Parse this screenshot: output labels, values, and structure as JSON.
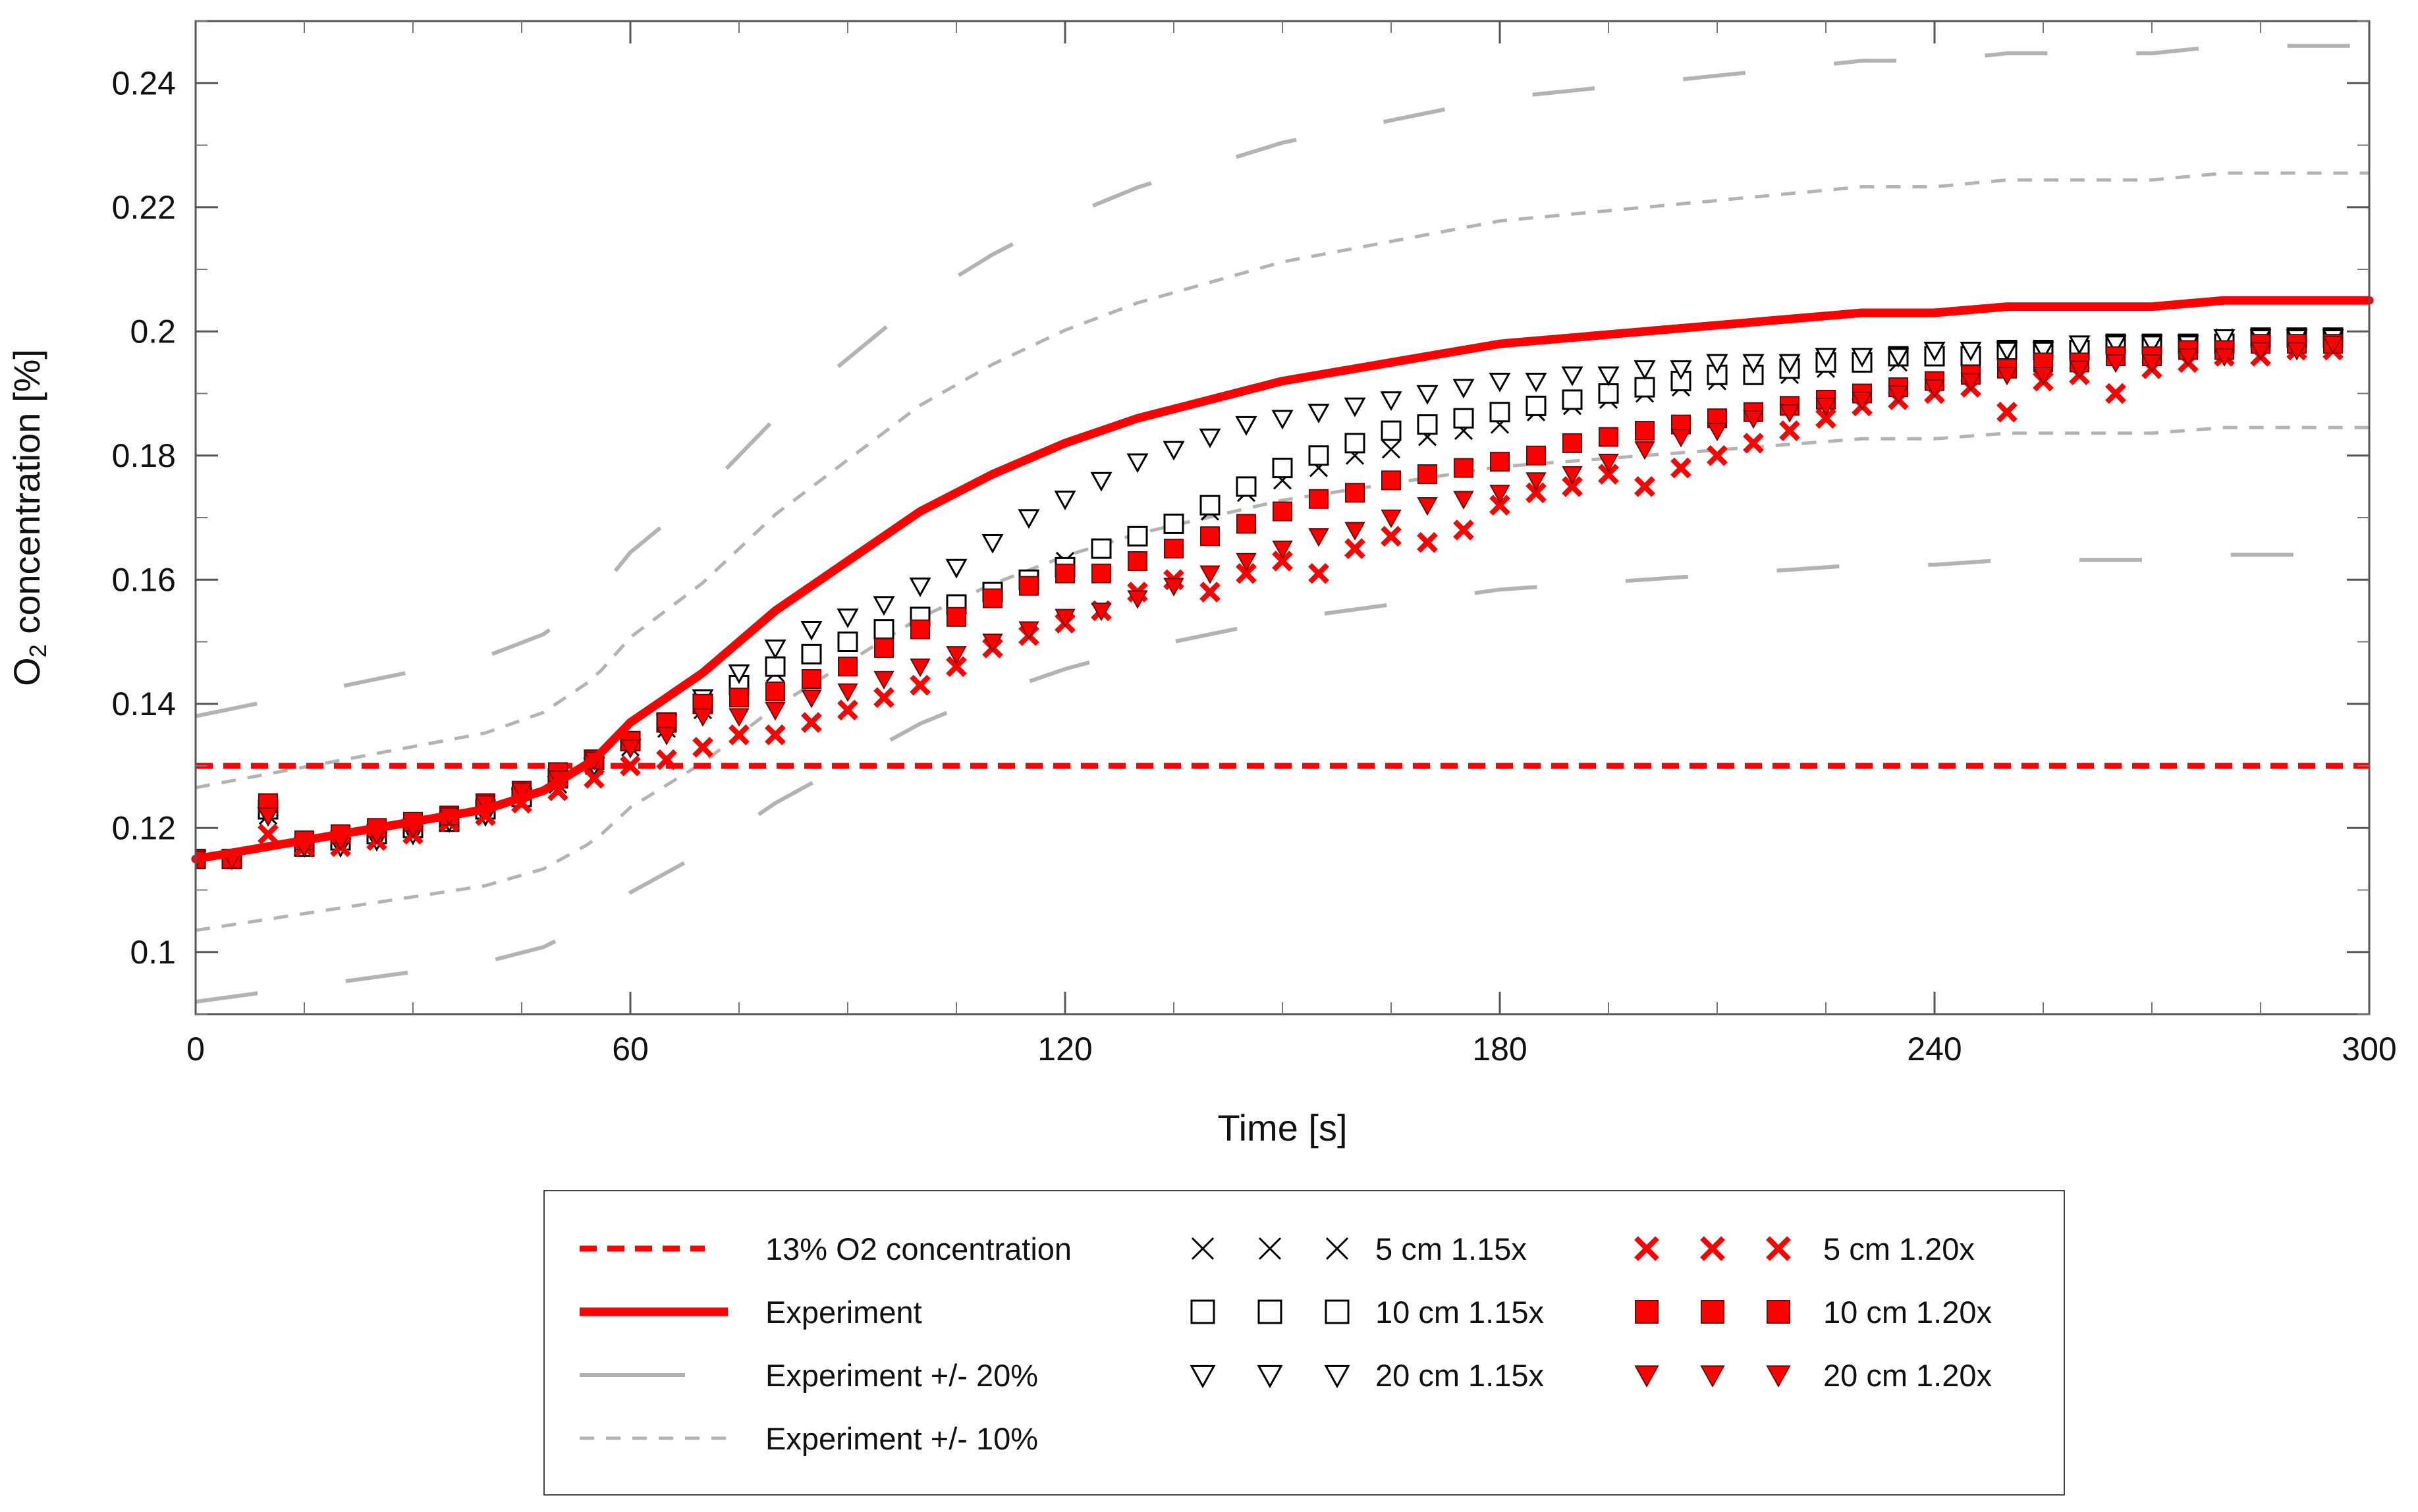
{
  "chart_data": {
    "type": "line",
    "xlabel": "Time [s]",
    "ylabel_main": "O",
    "ylabel_sub": "2",
    "ylabel_rest": " concentration [%]",
    "xlim": [
      0,
      300
    ],
    "ylim": [
      0.09,
      0.25
    ],
    "x_ticks": [
      0,
      60,
      120,
      180,
      240,
      300
    ],
    "x_tick_labels": [
      "0",
      "60",
      "120",
      "180",
      "240",
      "300"
    ],
    "y_ticks": [
      0.1,
      0.12,
      0.14,
      0.16,
      0.18,
      0.2,
      0.22,
      0.24
    ],
    "y_tick_labels": [
      "0.1",
      "0.12",
      "0.14",
      "0.16",
      "0.18",
      "0.2",
      "0.22",
      "0.24"
    ],
    "grid": false,
    "legend_position": "below",
    "colors": {
      "red": "#ff0000",
      "gray": "#b3b3b3",
      "black": "#000000"
    },
    "reference": {
      "name": "13% O2 concentration",
      "y": 0.13
    },
    "experiment": {
      "name": "Experiment",
      "x": [
        0,
        10,
        20,
        30,
        40,
        48,
        55,
        60,
        65,
        70,
        75,
        80,
        85,
        90,
        95,
        100,
        105,
        110,
        120,
        130,
        140,
        150,
        160,
        170,
        180,
        190,
        200,
        210,
        220,
        230,
        240,
        250,
        260,
        270,
        280,
        290,
        300
      ],
      "y": [
        0.115,
        0.117,
        0.119,
        0.121,
        0.123,
        0.126,
        0.131,
        0.137,
        0.141,
        0.145,
        0.15,
        0.155,
        0.159,
        0.163,
        0.167,
        0.171,
        0.174,
        0.177,
        0.182,
        0.186,
        0.189,
        0.192,
        0.194,
        0.196,
        0.198,
        0.199,
        0.2,
        0.201,
        0.202,
        0.203,
        0.203,
        0.204,
        0.204,
        0.204,
        0.205,
        0.205,
        0.205
      ]
    },
    "band_20": {
      "name": "Experiment +/- 20%",
      "factor": 0.2
    },
    "band_10": {
      "name": "Experiment +/- 10%",
      "factor": 0.1
    },
    "series": [
      {
        "name": "5 cm 1.15x",
        "marker": "x",
        "color": "#000000",
        "x": [
          0,
          5,
          10,
          15,
          20,
          25,
          30,
          35,
          40,
          45,
          50,
          55,
          60,
          65,
          70,
          75,
          80,
          85,
          90,
          95,
          100,
          105,
          110,
          115,
          120,
          125,
          130,
          135,
          140,
          145,
          150,
          155,
          160,
          165,
          170,
          175,
          180,
          185,
          190,
          195,
          200,
          205,
          210,
          215,
          220,
          225,
          230,
          235,
          240,
          245,
          250,
          255,
          260,
          265,
          270,
          275,
          280,
          285,
          290,
          295
        ],
        "y": [
          0.115,
          0.115,
          0.122,
          0.117,
          0.117,
          0.118,
          0.119,
          0.121,
          0.122,
          0.125,
          0.127,
          0.13,
          0.133,
          0.136,
          0.139,
          0.142,
          0.145,
          0.148,
          0.15,
          0.152,
          0.154,
          0.156,
          0.158,
          0.16,
          0.163,
          0.165,
          0.167,
          0.169,
          0.171,
          0.174,
          0.176,
          0.178,
          0.18,
          0.181,
          0.183,
          0.184,
          0.185,
          0.187,
          0.188,
          0.189,
          0.19,
          0.191,
          0.192,
          0.193,
          0.193,
          0.194,
          0.195,
          0.195,
          0.196,
          0.196,
          0.197,
          0.197,
          0.197,
          0.198,
          0.198,
          0.198,
          0.199,
          0.199,
          0.199,
          0.199
        ]
      },
      {
        "name": "10 cm 1.15x",
        "marker": "square-open",
        "color": "#000000",
        "x": [
          0,
          5,
          10,
          15,
          20,
          25,
          30,
          35,
          40,
          45,
          50,
          55,
          60,
          65,
          70,
          75,
          80,
          85,
          90,
          95,
          100,
          105,
          110,
          115,
          120,
          125,
          130,
          135,
          140,
          145,
          150,
          155,
          160,
          165,
          170,
          175,
          180,
          185,
          190,
          195,
          200,
          205,
          210,
          215,
          220,
          225,
          230,
          235,
          240,
          245,
          250,
          255,
          260,
          265,
          270,
          275,
          280,
          285,
          290,
          295
        ],
        "y": [
          0.115,
          0.115,
          0.123,
          0.117,
          0.118,
          0.119,
          0.12,
          0.121,
          0.123,
          0.125,
          0.128,
          0.131,
          0.134,
          0.137,
          0.14,
          0.143,
          0.146,
          0.148,
          0.15,
          0.152,
          0.154,
          0.156,
          0.158,
          0.16,
          0.162,
          0.165,
          0.167,
          0.169,
          0.172,
          0.175,
          0.178,
          0.18,
          0.182,
          0.184,
          0.185,
          0.186,
          0.187,
          0.188,
          0.189,
          0.19,
          0.191,
          0.192,
          0.193,
          0.193,
          0.194,
          0.195,
          0.195,
          0.196,
          0.196,
          0.196,
          0.197,
          0.197,
          0.197,
          0.198,
          0.198,
          0.198,
          0.198,
          0.199,
          0.199,
          0.199
        ]
      },
      {
        "name": "20 cm 1.15x",
        "marker": "triangle-open",
        "color": "#000000",
        "x": [
          0,
          5,
          10,
          15,
          20,
          25,
          30,
          35,
          40,
          45,
          50,
          55,
          60,
          65,
          70,
          75,
          80,
          85,
          90,
          95,
          100,
          105,
          110,
          115,
          120,
          125,
          130,
          135,
          140,
          145,
          150,
          155,
          160,
          165,
          170,
          175,
          180,
          185,
          190,
          195,
          200,
          205,
          210,
          215,
          220,
          225,
          230,
          235,
          240,
          245,
          250,
          255,
          260,
          265,
          270,
          275,
          280,
          285,
          290,
          295
        ],
        "y": [
          0.115,
          0.115,
          0.122,
          0.117,
          0.117,
          0.118,
          0.119,
          0.121,
          0.122,
          0.125,
          0.127,
          0.13,
          0.133,
          0.137,
          0.141,
          0.145,
          0.149,
          0.152,
          0.154,
          0.156,
          0.159,
          0.162,
          0.166,
          0.17,
          0.173,
          0.176,
          0.179,
          0.181,
          0.183,
          0.185,
          0.186,
          0.187,
          0.188,
          0.189,
          0.19,
          0.191,
          0.192,
          0.192,
          0.193,
          0.193,
          0.194,
          0.194,
          0.195,
          0.195,
          0.195,
          0.196,
          0.196,
          0.196,
          0.197,
          0.197,
          0.197,
          0.197,
          0.198,
          0.198,
          0.198,
          0.198,
          0.199,
          0.199,
          0.199,
          0.199
        ]
      },
      {
        "name": "5 cm 1.20x",
        "marker": "x-bold",
        "color": "#ff0000",
        "x": [
          0,
          5,
          10,
          15,
          20,
          25,
          30,
          35,
          40,
          45,
          50,
          55,
          60,
          65,
          70,
          75,
          80,
          85,
          90,
          95,
          100,
          105,
          110,
          115,
          120,
          125,
          130,
          135,
          140,
          145,
          150,
          155,
          160,
          165,
          170,
          175,
          180,
          185,
          190,
          195,
          200,
          205,
          210,
          215,
          220,
          225,
          230,
          235,
          240,
          245,
          250,
          255,
          260,
          265,
          270,
          275,
          280,
          285,
          290,
          295
        ],
        "y": [
          0.115,
          0.115,
          0.119,
          0.117,
          0.117,
          0.118,
          0.119,
          0.121,
          0.122,
          0.124,
          0.126,
          0.128,
          0.13,
          0.131,
          0.133,
          0.135,
          0.135,
          0.137,
          0.139,
          0.141,
          0.143,
          0.146,
          0.149,
          0.151,
          0.153,
          0.155,
          0.158,
          0.16,
          0.158,
          0.161,
          0.163,
          0.161,
          0.165,
          0.167,
          0.166,
          0.168,
          0.172,
          0.174,
          0.175,
          0.177,
          0.175,
          0.178,
          0.18,
          0.182,
          0.184,
          0.186,
          0.188,
          0.189,
          0.19,
          0.191,
          0.187,
          0.192,
          0.193,
          0.19,
          0.194,
          0.195,
          0.196,
          0.196,
          0.197,
          0.197
        ]
      },
      {
        "name": "10 cm 1.20x",
        "marker": "square-filled",
        "color": "#ff0000",
        "x": [
          0,
          5,
          10,
          15,
          20,
          25,
          30,
          35,
          40,
          45,
          50,
          55,
          60,
          65,
          70,
          75,
          80,
          85,
          90,
          95,
          100,
          105,
          110,
          115,
          120,
          125,
          130,
          135,
          140,
          145,
          150,
          155,
          160,
          165,
          170,
          175,
          180,
          185,
          190,
          195,
          200,
          205,
          210,
          215,
          220,
          225,
          230,
          235,
          240,
          245,
          250,
          255,
          260,
          265,
          270,
          275,
          280,
          285,
          290,
          295
        ],
        "y": [
          0.115,
          0.115,
          0.124,
          0.118,
          0.119,
          0.12,
          0.121,
          0.122,
          0.124,
          0.126,
          0.129,
          0.131,
          0.134,
          0.137,
          0.14,
          0.141,
          0.142,
          0.144,
          0.146,
          0.149,
          0.152,
          0.154,
          0.157,
          0.159,
          0.161,
          0.161,
          0.163,
          0.165,
          0.167,
          0.169,
          0.171,
          0.173,
          0.174,
          0.176,
          0.177,
          0.178,
          0.179,
          0.18,
          0.182,
          0.183,
          0.184,
          0.185,
          0.186,
          0.187,
          0.188,
          0.189,
          0.19,
          0.191,
          0.192,
          0.193,
          0.194,
          0.195,
          0.195,
          0.196,
          0.196,
          0.197,
          0.197,
          0.198,
          0.198,
          0.198
        ]
      },
      {
        "name": "20 cm 1.20x",
        "marker": "triangle-filled",
        "color": "#ff0000",
        "x": [
          0,
          5,
          10,
          15,
          20,
          25,
          30,
          35,
          40,
          45,
          50,
          55,
          60,
          65,
          70,
          75,
          80,
          85,
          90,
          95,
          100,
          105,
          110,
          115,
          120,
          125,
          130,
          135,
          140,
          145,
          150,
          155,
          160,
          165,
          170,
          175,
          180,
          185,
          190,
          195,
          200,
          205,
          210,
          215,
          220,
          225,
          230,
          235,
          240,
          245,
          250,
          255,
          260,
          265,
          270,
          275,
          280,
          285,
          290,
          295
        ],
        "y": [
          0.115,
          0.115,
          0.122,
          0.117,
          0.118,
          0.119,
          0.12,
          0.122,
          0.124,
          0.126,
          0.128,
          0.131,
          0.133,
          0.135,
          0.138,
          0.138,
          0.139,
          0.141,
          0.142,
          0.144,
          0.146,
          0.148,
          0.15,
          0.152,
          0.154,
          0.155,
          0.157,
          0.159,
          0.161,
          0.163,
          0.165,
          0.167,
          0.168,
          0.17,
          0.172,
          0.173,
          0.174,
          0.176,
          0.177,
          0.179,
          0.181,
          0.183,
          0.184,
          0.186,
          0.187,
          0.188,
          0.189,
          0.19,
          0.191,
          0.192,
          0.193,
          0.193,
          0.194,
          0.195,
          0.195,
          0.196,
          0.196,
          0.197,
          0.197,
          0.198
        ]
      }
    ]
  },
  "legend": {
    "items": [
      {
        "label": "13% O2 concentration",
        "key": "ref"
      },
      {
        "label": "Experiment",
        "key": "exp"
      },
      {
        "label": "Experiment +/- 20%",
        "key": "b20"
      },
      {
        "label": "Experiment +/- 10%",
        "key": "b10"
      },
      {
        "label": "5 cm 1.15x",
        "key": "s0"
      },
      {
        "label": "10 cm 1.15x",
        "key": "s1"
      },
      {
        "label": "20 cm 1.15x",
        "key": "s2"
      },
      {
        "label": "5 cm 1.20x",
        "key": "s3"
      },
      {
        "label": "10 cm 1.20x",
        "key": "s4"
      },
      {
        "label": "20 cm 1.20x",
        "key": "s5"
      }
    ]
  }
}
